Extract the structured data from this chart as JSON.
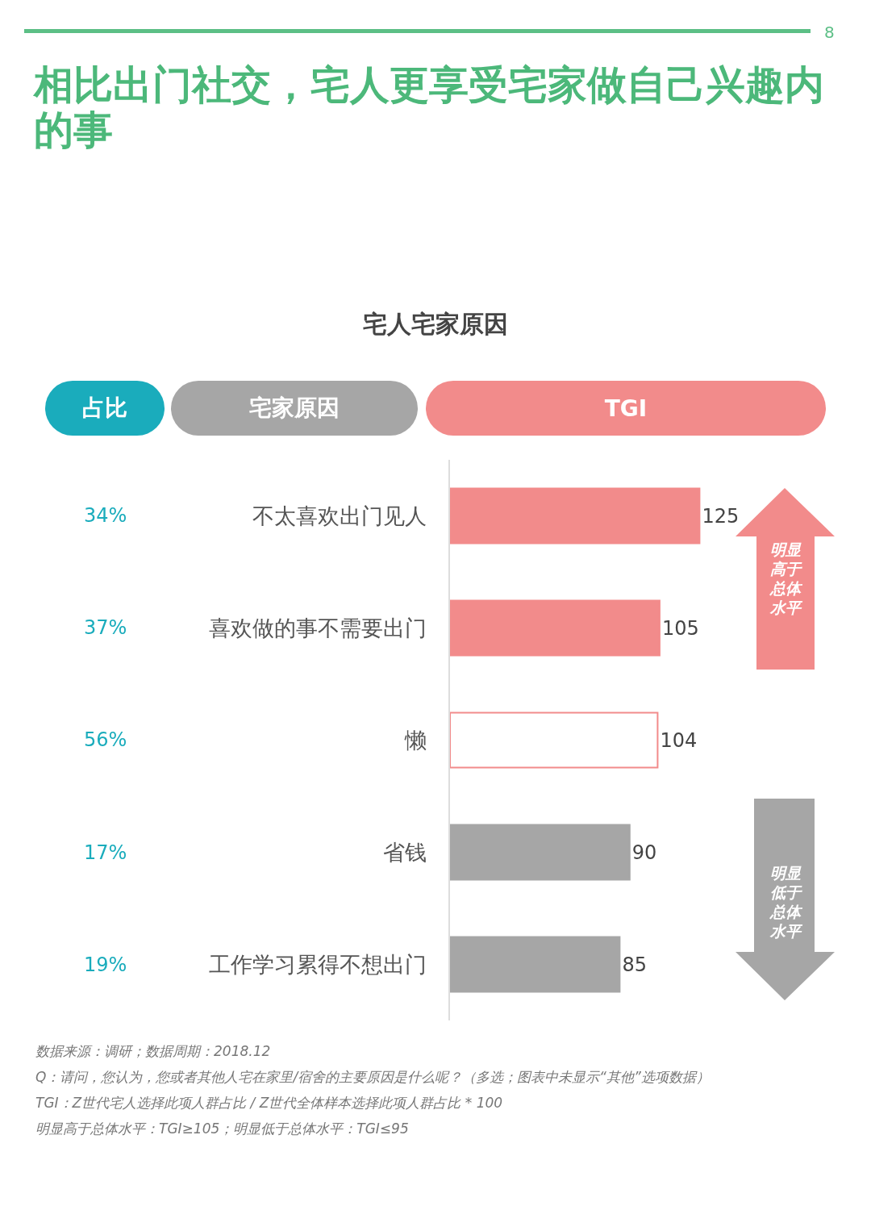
{
  "chart_data": {
    "type": "bar",
    "orientation": "horizontal",
    "title": "相比出门社交，宅人更享受宅家做自己兴趣内的事",
    "subtitle": "宅人宅家原因",
    "categories": [
      "不太喜欢出门见人",
      "喜欢做的事不需要出门",
      "懒",
      "省钱",
      "工作学习累得不想出门"
    ],
    "values": [
      125,
      105,
      104,
      90,
      85
    ],
    "colors": [
      "#f28b8b",
      "#f28b8b",
      "#ffffff",
      "#a6a6a6",
      "#a6a6a6"
    ],
    "data_labels": true,
    "grid": false,
    "tick_labels": "y",
    "annotations": [
      "8",
      "占比",
      "宅家原因",
      "TGI",
      "明显高于总体水平",
      "明显低于总体水平",
      "数据来源：调研；数据周期：2018.12",
      "Q：请问，您认为，您或者其他人宅在家里/宿舍的主要原因是什么呢？（多选；图表中未显示“其他”选项数据）",
      "TGI：Z世代宅人选择此项人群占比 / Z世代全体样本选择此项人群占比 * 100",
      "明显高于总体水平：TGI≥105；明显低于总体水平：TGI≤95",
      "34%",
      "37%",
      "56%",
      "17%",
      "19%"
    ]
  }
}
